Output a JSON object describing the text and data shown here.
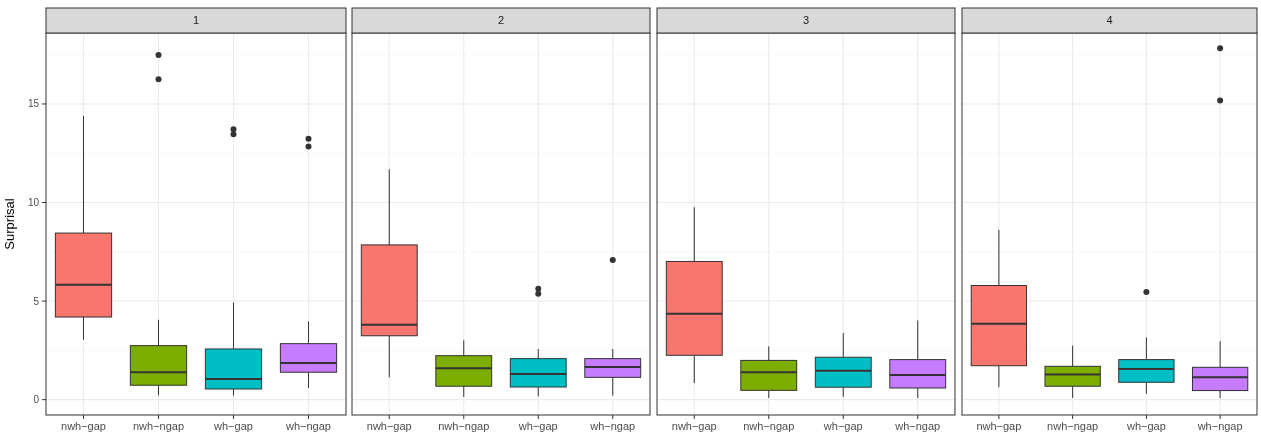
{
  "chart_data": [
    {
      "type": "box",
      "title": "1",
      "ylabel": "Surprisal",
      "categories": [
        "nwh−gap",
        "nwh−ngap",
        "wh−gap",
        "wh−ngap"
      ],
      "colors": [
        "#f8766d",
        "#7cae00",
        "#00bfc4",
        "#c77cff"
      ],
      "ylim": [
        -0.78,
        18.6
      ],
      "yticks": [
        0,
        5,
        10,
        15
      ],
      "grid": true,
      "boxes": [
        {
          "low": 3.04,
          "q1": 4.19,
          "median": 5.83,
          "q3": 8.45,
          "high": 14.4
        },
        {
          "low": 0.22,
          "q1": 0.73,
          "median": 1.39,
          "q3": 2.74,
          "high": 4.05,
          "outliers": [
            17.48,
            16.25
          ]
        },
        {
          "low": 0.2,
          "q1": 0.54,
          "median": 1.05,
          "q3": 2.57,
          "high": 4.93,
          "outliers": [
            13.72,
            13.46
          ]
        },
        {
          "low": 0.59,
          "q1": 1.39,
          "median": 1.86,
          "q3": 2.84,
          "high": 3.97,
          "outliers": [
            13.24,
            12.84
          ]
        }
      ]
    },
    {
      "type": "box",
      "title": "2",
      "categories": [
        "nwh−gap",
        "nwh−ngap",
        "wh−gap",
        "wh−ngap"
      ],
      "colors": [
        "#f8766d",
        "#7cae00",
        "#00bfc4",
        "#c77cff"
      ],
      "ylim": [
        -0.78,
        18.6
      ],
      "yticks": [
        0,
        5,
        10,
        15
      ],
      "grid": true,
      "tick_labels": "x",
      "boxes": [
        {
          "low": 1.13,
          "q1": 3.24,
          "median": 3.8,
          "q3": 7.85,
          "high": 11.69
        },
        {
          "low": 0.14,
          "q1": 0.68,
          "median": 1.59,
          "q3": 2.23,
          "high": 3.01
        },
        {
          "low": 0.17,
          "q1": 0.64,
          "median": 1.3,
          "q3": 2.08,
          "high": 2.57,
          "outliers": [
            5.63,
            5.37
          ]
        },
        {
          "low": 0.2,
          "q1": 1.13,
          "median": 1.66,
          "q3": 2.08,
          "high": 2.57,
          "outliers": [
            7.08
          ]
        }
      ]
    },
    {
      "type": "box",
      "title": "3",
      "categories": [
        "nwh−gap",
        "nwh−ngap",
        "wh−gap",
        "wh−ngap"
      ],
      "colors": [
        "#f8766d",
        "#7cae00",
        "#00bfc4",
        "#c77cff"
      ],
      "ylim": [
        -0.78,
        18.6
      ],
      "yticks": [
        0,
        5,
        10,
        15
      ],
      "grid": true,
      "tick_labels": "x",
      "boxes": [
        {
          "low": 0.84,
          "q1": 2.25,
          "median": 4.36,
          "q3": 7.01,
          "high": 9.76
        },
        {
          "low": 0.08,
          "q1": 0.47,
          "median": 1.39,
          "q3": 1.99,
          "high": 2.7
        },
        {
          "low": 0.14,
          "q1": 0.63,
          "median": 1.47,
          "q3": 2.15,
          "high": 3.38
        },
        {
          "low": 0.08,
          "q1": 0.59,
          "median": 1.25,
          "q3": 2.03,
          "high": 4.02
        }
      ]
    },
    {
      "type": "box",
      "title": "4",
      "categories": [
        "nwh−gap",
        "nwh−ngap",
        "wh−gap",
        "wh−ngap"
      ],
      "colors": [
        "#f8766d",
        "#7cae00",
        "#00bfc4",
        "#c77cff"
      ],
      "ylim": [
        -0.78,
        18.6
      ],
      "yticks": [
        0,
        5,
        10,
        15
      ],
      "grid": true,
      "tick_labels": "x",
      "boxes": [
        {
          "low": 0.63,
          "q1": 1.72,
          "median": 3.85,
          "q3": 5.79,
          "high": 8.61
        },
        {
          "low": 0.08,
          "q1": 0.68,
          "median": 1.27,
          "q3": 1.69,
          "high": 2.74
        },
        {
          "low": 0.29,
          "q1": 0.88,
          "median": 1.55,
          "q3": 2.03,
          "high": 3.16,
          "outliers": [
            5.46
          ]
        },
        {
          "low": 0.08,
          "q1": 0.46,
          "median": 1.13,
          "q3": 1.64,
          "high": 2.96,
          "outliers": [
            17.82,
            15.17
          ]
        }
      ]
    }
  ]
}
